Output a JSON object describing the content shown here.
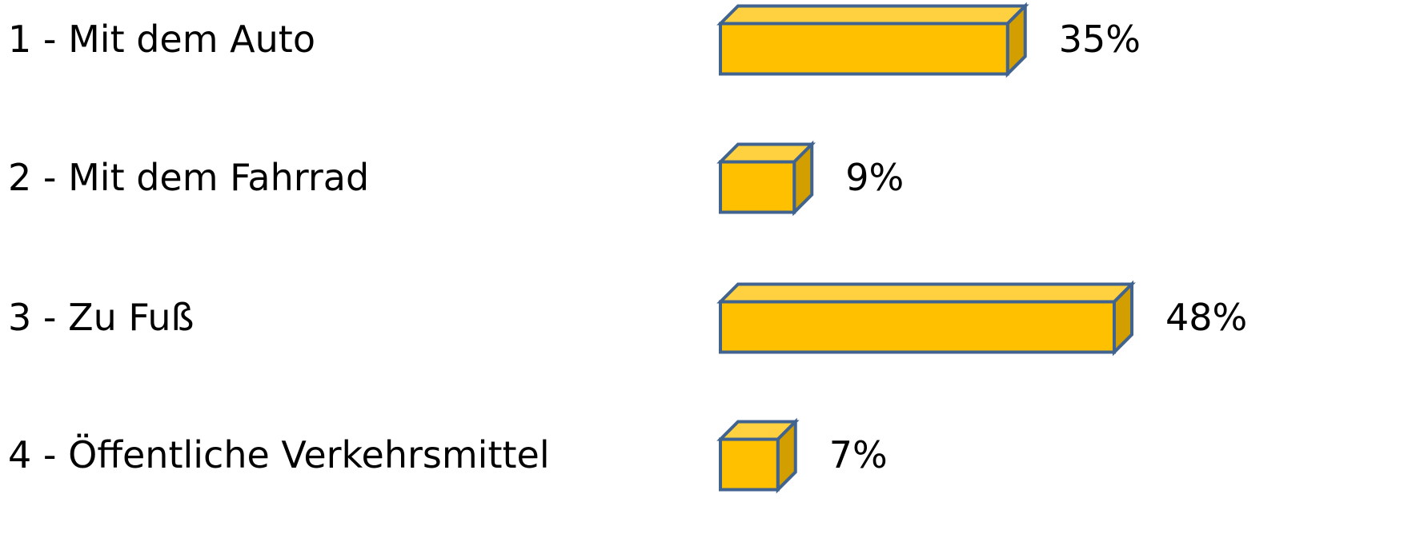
{
  "chart_data": {
    "type": "bar",
    "orientation": "horizontal",
    "style": "3d-box",
    "categories": [
      "1 - Mit dem Auto",
      "2 - Mit dem Fahrrad",
      "3 - Zu Fuß",
      "4 - Öffentliche Verkehrsmittel"
    ],
    "values": [
      35,
      9,
      48,
      7
    ],
    "value_labels": [
      "35%",
      "9%",
      "48%",
      "7%"
    ],
    "unit": "%",
    "title": "",
    "xlabel": "",
    "ylabel": "",
    "grid": false,
    "legend": "none",
    "colors": {
      "front": "#FFC000",
      "top": "#FFD040",
      "side": "#D29E00",
      "outline": "#41638F"
    }
  }
}
